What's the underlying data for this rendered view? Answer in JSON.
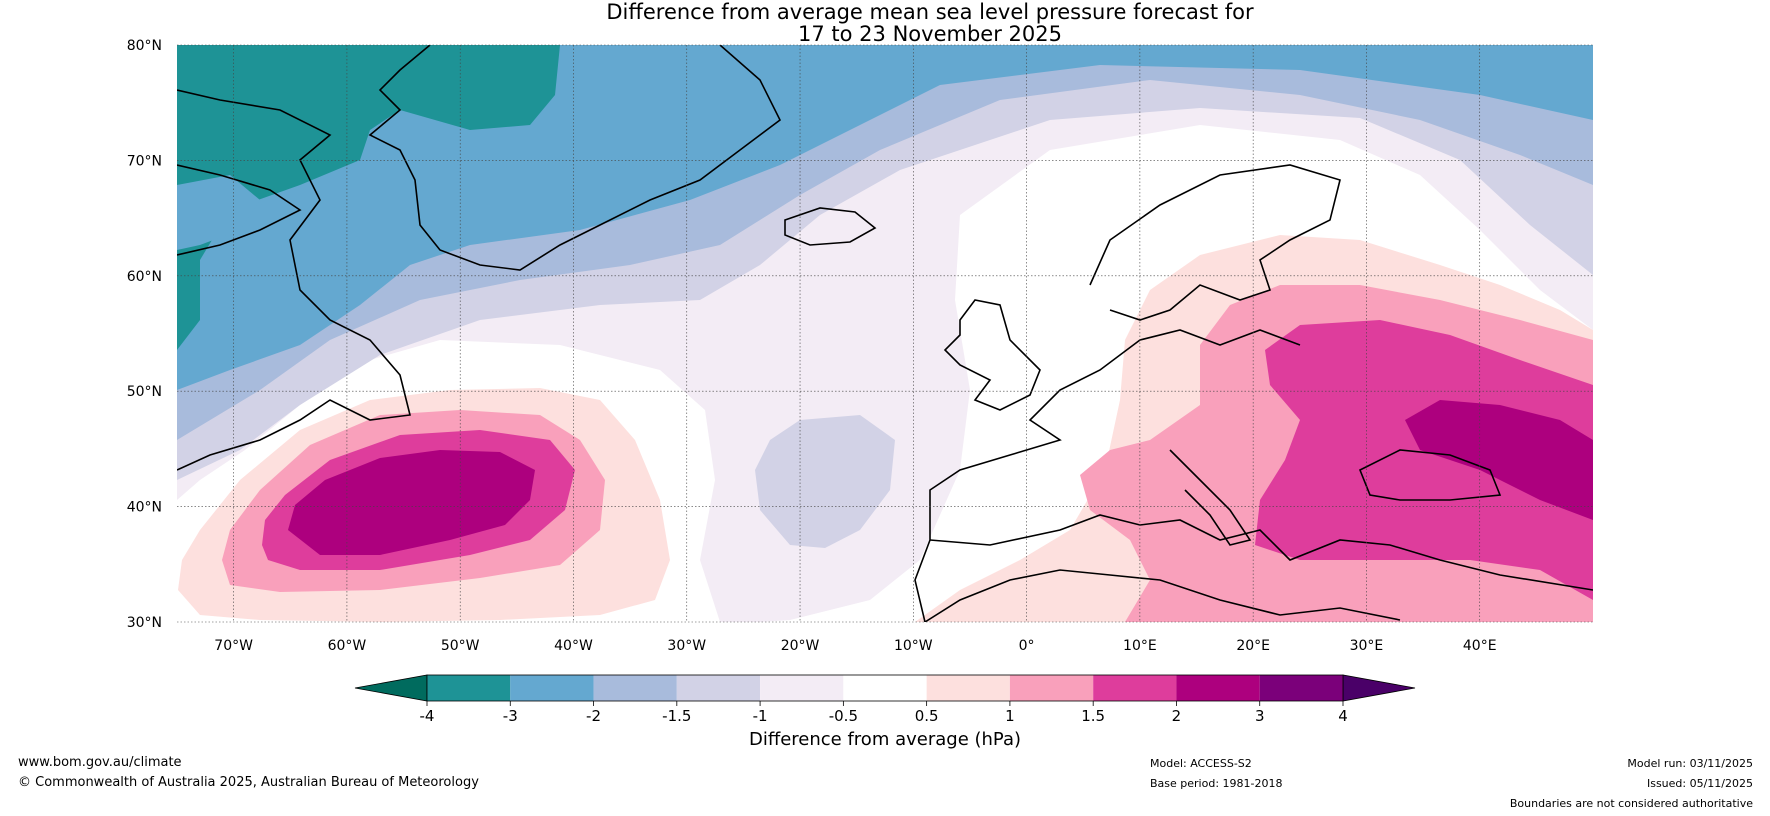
{
  "title": {
    "line1": "Difference from average mean sea level pressure forecast for",
    "line2": "17 to 23 November 2025"
  },
  "map": {
    "lat_labels": [
      "80°N",
      "70°N",
      "60°N",
      "50°N",
      "40°N",
      "30°N"
    ],
    "lon_labels": [
      "70°W",
      "60°W",
      "50°W",
      "40°W",
      "30°W",
      "20°W",
      "10°W",
      "0°",
      "10°E",
      "20°E",
      "30°E",
      "40°E"
    ],
    "lat_range": [
      30,
      80
    ],
    "lon_range": [
      -75,
      50
    ]
  },
  "colorbar": {
    "ticks": [
      "-4",
      "-3",
      "-2",
      "-1.5",
      "-1",
      "-0.5",
      "0.5",
      "1",
      "1.5",
      "2",
      "3",
      "4"
    ],
    "colors": {
      "lt_m4": "#006b5e",
      "m4_m3": "#1e9396",
      "m3_m2": "#64a8d0",
      "m2_m15": "#a8bbdc",
      "m15_m1": "#d2d2e6",
      "m1_m05": "#f3ecf5",
      "m05_05": "#ffffff",
      "p05_1": "#fde0de",
      "p1_15": "#f9a0bb",
      "p15_2": "#de3d9c",
      "p2_3": "#ad007e",
      "p3_4": "#7b007a",
      "gt_4": "#4a0068"
    },
    "label": "Difference from average (hPa)"
  },
  "footer": {
    "website": "www.bom.gov.au/climate",
    "copyright": "© Commonwealth of Australia 2025, Australian Bureau of Meteorology",
    "model": "Model: ACCESS-S2",
    "base_period": "Base period: 1981-2018",
    "model_run": "Model run: 03/11/2025",
    "issued": "Issued: 05/11/2025",
    "disclaimer": "Boundaries are not considered authoritative"
  }
}
